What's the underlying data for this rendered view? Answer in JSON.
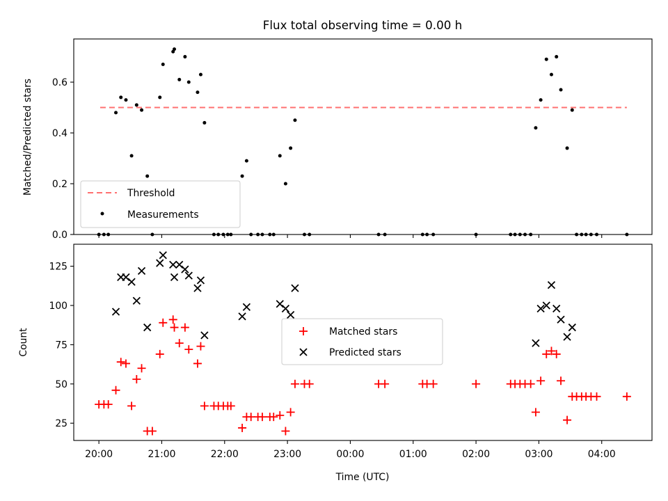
{
  "figure_title": "Flux total observing time = 0.00 h",
  "colors": {
    "measurements": "#000000",
    "threshold": "#ff7070",
    "matched": "#ff0000",
    "predicted": "#000000"
  },
  "chart_data": [
    {
      "type": "scatter",
      "title": "Flux total observing time = 0.00 h",
      "xlabel": "",
      "ylabel": "Matched/Predicted stars",
      "x_unit": "hours since 20:00 UTC",
      "xlim": [
        -0.4,
        8.8
      ],
      "ylim": [
        0,
        0.77
      ],
      "yticks": [
        0.0,
        0.2,
        0.4,
        0.6
      ],
      "ytick_labels": [
        "0.0",
        "0.2",
        "0.4",
        "0.6"
      ],
      "xtick_labels_shown": false,
      "legend_placement": "lower-left",
      "threshold": {
        "name": "Threshold",
        "value": 0.5,
        "x_range": [
          0.02,
          8.4
        ],
        "style": "dashed"
      },
      "series": [
        {
          "name": "Measurements",
          "marker": "dot",
          "x": [
            0.0,
            0.08,
            0.15,
            0.27,
            0.35,
            0.43,
            0.52,
            0.6,
            0.68,
            0.77,
            0.85,
            0.97,
            1.02,
            1.18,
            1.2,
            1.28,
            1.37,
            1.43,
            1.57,
            1.62,
            1.68,
            1.83,
            1.9,
            1.98,
            2.05,
            2.1,
            2.28,
            2.35,
            2.42,
            2.53,
            2.6,
            2.72,
            2.78,
            2.88,
            2.97,
            3.05,
            3.12,
            3.27,
            3.35,
            4.45,
            4.55,
            5.15,
            5.22,
            5.32,
            6.0,
            6.55,
            6.62,
            6.7,
            6.78,
            6.87,
            6.95,
            7.03,
            7.12,
            7.2,
            7.28,
            7.35,
            7.45,
            7.53,
            7.6,
            7.68,
            7.75,
            7.83,
            7.92,
            8.4
          ],
          "y": [
            0.0,
            0.0,
            0.0,
            0.48,
            0.54,
            0.53,
            0.31,
            0.51,
            0.49,
            0.23,
            0.0,
            0.54,
            0.67,
            0.72,
            0.73,
            0.61,
            0.7,
            0.6,
            0.56,
            0.63,
            0.44,
            0.0,
            0.0,
            0.0,
            0.0,
            0.0,
            0.23,
            0.29,
            0.0,
            0.0,
            0.0,
            0.0,
            0.0,
            0.31,
            0.2,
            0.34,
            0.45,
            0.0,
            0.0,
            0.0,
            0.0,
            0.0,
            0.0,
            0.0,
            0.0,
            0.0,
            0.0,
            0.0,
            0.0,
            0.0,
            0.42,
            0.53,
            0.69,
            0.63,
            0.7,
            0.57,
            0.34,
            0.49,
            0.0,
            0.0,
            0.0,
            0.0,
            0.0,
            0.0
          ]
        }
      ]
    },
    {
      "type": "scatter",
      "title": "",
      "xlabel": "Time (UTC)",
      "ylabel": "Count",
      "x_unit": "hours since 20:00 UTC",
      "xlim": [
        -0.4,
        8.8
      ],
      "ylim": [
        14,
        139
      ],
      "xticks": [
        0,
        1,
        2,
        3,
        4,
        5,
        6,
        7,
        8
      ],
      "xtick_labels": [
        "20:00",
        "21:00",
        "22:00",
        "23:00",
        "00:00",
        "01:00",
        "02:00",
        "03:00",
        "04:00"
      ],
      "yticks": [
        25,
        50,
        75,
        100,
        125
      ],
      "ytick_labels": [
        "25",
        "50",
        "75",
        "100",
        "125"
      ],
      "legend_placement": "center",
      "series": [
        {
          "name": "Matched stars",
          "marker": "plus",
          "x": [
            0.0,
            0.08,
            0.15,
            0.27,
            0.35,
            0.43,
            0.52,
            0.6,
            0.68,
            0.77,
            0.85,
            0.97,
            1.02,
            1.18,
            1.2,
            1.28,
            1.37,
            1.43,
            1.57,
            1.62,
            1.68,
            1.83,
            1.9,
            1.98,
            2.05,
            2.1,
            2.28,
            2.35,
            2.42,
            2.53,
            2.6,
            2.72,
            2.78,
            2.88,
            2.97,
            3.05,
            3.12,
            3.27,
            3.35,
            4.45,
            4.55,
            5.15,
            5.22,
            5.32,
            6.0,
            6.55,
            6.62,
            6.7,
            6.78,
            6.87,
            6.95,
            7.03,
            7.12,
            7.2,
            7.28,
            7.35,
            7.45,
            7.53,
            7.6,
            7.68,
            7.75,
            7.83,
            7.92,
            8.4
          ],
          "y": [
            37,
            37,
            37,
            46,
            64,
            63,
            36,
            53,
            60,
            20,
            20,
            69,
            89,
            91,
            86,
            76,
            86,
            72,
            63,
            74,
            36,
            36,
            36,
            36,
            36,
            36,
            22,
            29,
            29,
            29,
            29,
            29,
            29,
            30,
            20,
            32,
            50,
            50,
            50,
            50,
            50,
            50,
            50,
            50,
            50,
            50,
            50,
            50,
            50,
            50,
            32,
            52,
            69,
            71,
            69,
            52,
            27,
            42,
            42,
            42,
            42,
            42,
            42,
            42
          ]
        },
        {
          "name": "Predicted stars",
          "marker": "x",
          "x": [
            0.27,
            0.35,
            0.43,
            0.52,
            0.6,
            0.68,
            0.77,
            0.97,
            1.02,
            1.18,
            1.2,
            1.28,
            1.37,
            1.43,
            1.57,
            1.62,
            1.68,
            2.28,
            2.35,
            2.88,
            2.97,
            3.05,
            3.12,
            6.95,
            7.03,
            7.12,
            7.2,
            7.28,
            7.35,
            7.45,
            7.53
          ],
          "y": [
            96,
            118,
            118,
            115,
            103,
            122,
            86,
            127,
            132,
            126,
            118,
            126,
            123,
            119,
            111,
            116,
            81,
            93,
            99,
            101,
            98,
            94,
            111,
            76,
            98,
            100,
            113,
            98,
            91,
            80,
            86
          ]
        }
      ]
    }
  ]
}
